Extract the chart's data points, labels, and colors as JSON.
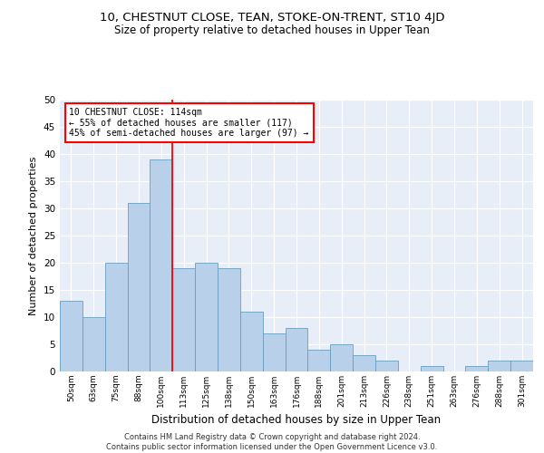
{
  "title": "10, CHESTNUT CLOSE, TEAN, STOKE-ON-TRENT, ST10 4JD",
  "subtitle": "Size of property relative to detached houses in Upper Tean",
  "xlabel": "Distribution of detached houses by size in Upper Tean",
  "ylabel": "Number of detached properties",
  "bin_labels": [
    "50sqm",
    "63sqm",
    "75sqm",
    "88sqm",
    "100sqm",
    "113sqm",
    "125sqm",
    "138sqm",
    "150sqm",
    "163sqm",
    "176sqm",
    "188sqm",
    "201sqm",
    "213sqm",
    "226sqm",
    "238sqm",
    "251sqm",
    "263sqm",
    "276sqm",
    "288sqm",
    "301sqm"
  ],
  "bar_values": [
    13,
    10,
    20,
    31,
    39,
    19,
    20,
    19,
    11,
    7,
    8,
    4,
    5,
    3,
    2,
    0,
    1,
    0,
    1,
    2,
    2
  ],
  "bar_color": "#b8d0ea",
  "bar_edge_color": "#6a9ec0",
  "annotation_title": "10 CHESTNUT CLOSE: 114sqm",
  "annotation_line1": "← 55% of detached houses are smaller (117)",
  "annotation_line2": "45% of semi-detached houses are larger (97) →",
  "vline_color": "red",
  "ylim": [
    0,
    50
  ],
  "yticks": [
    0,
    5,
    10,
    15,
    20,
    25,
    30,
    35,
    40,
    45,
    50
  ],
  "background_color": "#e8eef8",
  "grid_color": "#ffffff",
  "footer_line1": "Contains HM Land Registry data © Crown copyright and database right 2024.",
  "footer_line2": "Contains public sector information licensed under the Open Government Licence v3.0."
}
